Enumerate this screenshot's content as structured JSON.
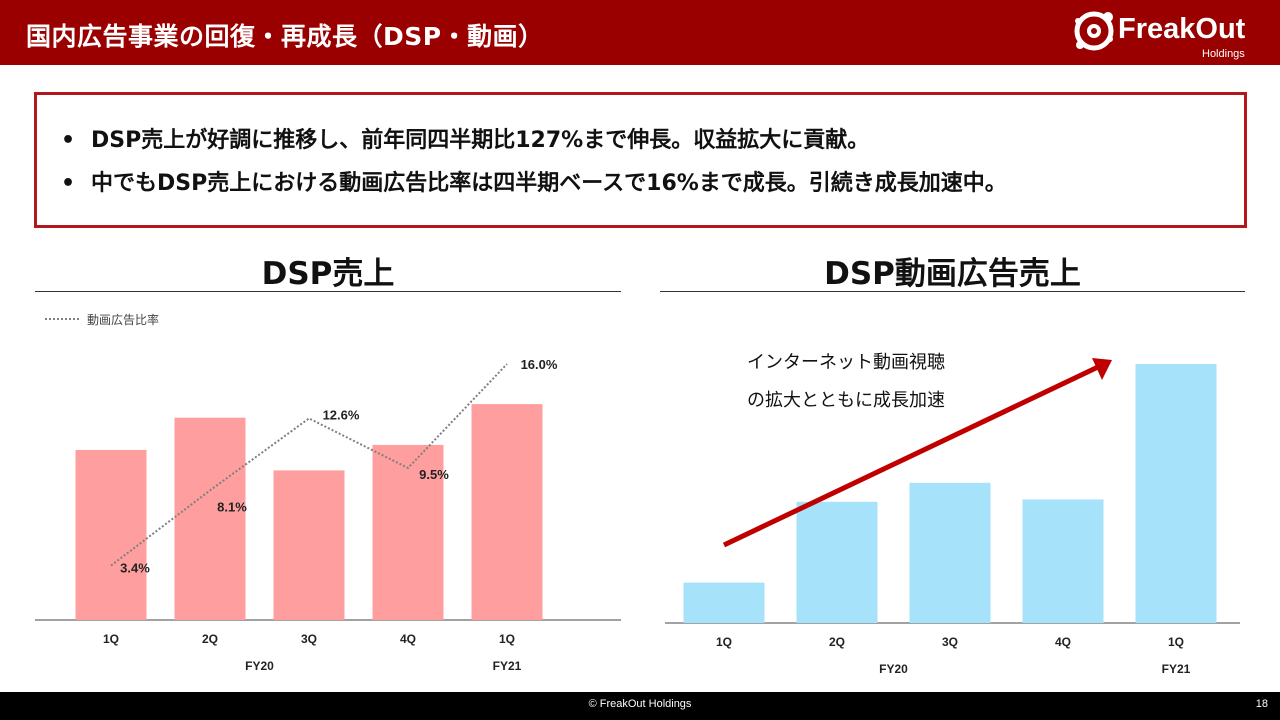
{
  "header": {
    "title": "国内広告事業の回復・再成長（DSP・動画）",
    "logo_text": "FreakOut",
    "logo_sub": "Holdings",
    "background": "#9b0000"
  },
  "summary": {
    "bullet_symbol": "•",
    "bullets": [
      "DSP売上が好調に推移し、前年同四半期比127%まで伸長。収益拡大に貢献。",
      "中でもDSP売上における動画広告比率は四半期ベースで16%まで成長。引続き成長加速中。"
    ],
    "border_color": "#b3171c"
  },
  "chart_data": [
    {
      "type": "bar",
      "title": "DSP売上",
      "categories": [
        "1Q",
        "2Q",
        "3Q",
        "4Q",
        "1Q"
      ],
      "groups": [
        {
          "label": "FY20",
          "from": 0,
          "to": 3
        },
        {
          "label": "FY21",
          "from": 4,
          "to": 4
        }
      ],
      "series": [
        {
          "values": [
            100,
            119,
            88,
            103,
            127
          ],
          "color": "#ff9e9e"
        },
        {
          "name": "動画広告比率",
          "kind": "line",
          "style": "dotted",
          "color": "#7f7f7f",
          "values": [
            3.4,
            8.1,
            12.6,
            9.5,
            16.0
          ],
          "value_labels": [
            "3.4%",
            "8.1%",
            "12.6%",
            "9.5%",
            "16.0%"
          ],
          "ylim": [
            0,
            18.5
          ]
        }
      ],
      "ylim": [
        0,
        150
      ],
      "legend_position": "top-left",
      "grid": false
    },
    {
      "type": "bar",
      "title": "DSP動画広告売上",
      "categories": [
        "1Q",
        "2Q",
        "3Q",
        "4Q",
        "1Q"
      ],
      "groups": [
        {
          "label": "FY20",
          "from": 0,
          "to": 3
        },
        {
          "label": "FY21",
          "from": 4,
          "to": 4
        }
      ],
      "series": [
        {
          "values": [
            17,
            51,
            59,
            52,
            109
          ],
          "color": "#a6e3fb"
        }
      ],
      "ylim": [
        0,
        125
      ],
      "annotation": [
        "インターネット動画視聴",
        "の拡大とともに成長加速"
      ],
      "arrow_color": "#c00000",
      "grid": false
    }
  ],
  "footer": {
    "copyright": "© FreakOut Holdings",
    "page": "18"
  }
}
